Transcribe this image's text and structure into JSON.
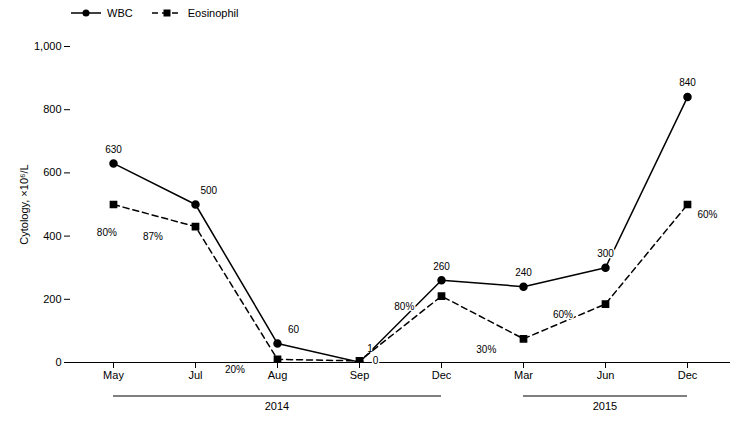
{
  "chart_data": {
    "type": "line",
    "categories": [
      "May",
      "Jul",
      "Aug",
      "Sep",
      "Dec",
      "Mar",
      "Jun",
      "Dec"
    ],
    "series": [
      {
        "name": "WBC",
        "color": "#000000",
        "values": [
          630,
          500,
          60,
          1,
          260,
          240,
          300,
          840
        ],
        "marker": "circle",
        "line_style": "solid",
        "data_labels": true
      },
      {
        "name": "Eosinophil",
        "color": "#000000",
        "values": [
          500,
          430,
          10,
          5,
          210,
          75,
          185,
          500
        ],
        "marker": "square",
        "line_style": "dashed",
        "point_labels": [
          "80%",
          "87%",
          "20%",
          "0",
          "80%",
          "30%",
          "60%",
          "60%"
        ]
      }
    ],
    "ylabel": "Cytology, ×10⁶/L",
    "ylim": [
      0,
      1000
    ],
    "yticks": [
      0,
      200,
      400,
      600,
      800,
      {
        "value": 1000,
        "label": "1,000"
      }
    ],
    "grid": false,
    "legend": "upper left",
    "annotations": [
      {
        "text": "2014",
        "x": [
          0,
          4
        ]
      },
      {
        "text": "2015",
        "x": [
          5,
          7
        ]
      }
    ]
  }
}
